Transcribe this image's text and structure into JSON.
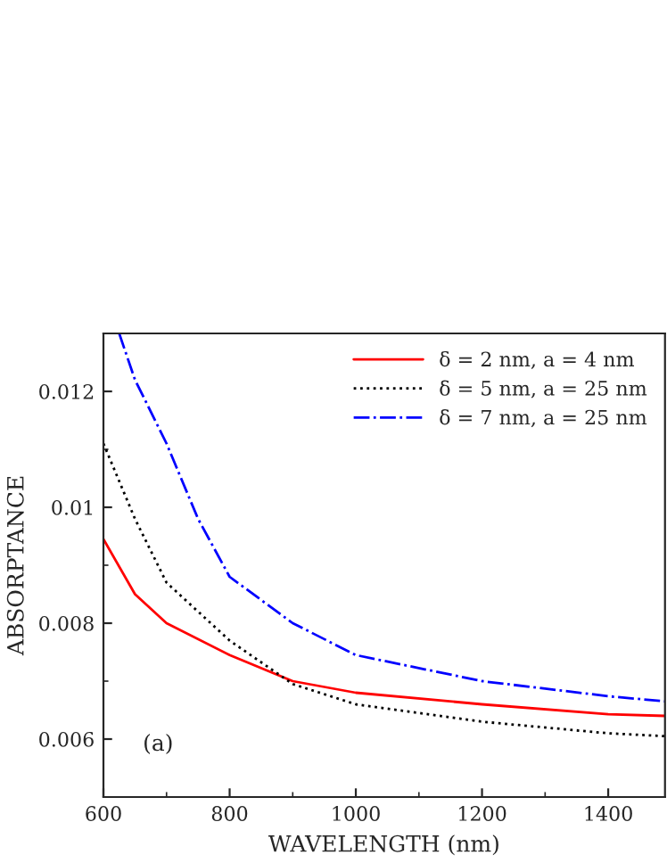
{
  "chart_data": {
    "type": "line",
    "xlabel": "WAVELENGTH (nm)",
    "ylabel": "ABSORPTANCE",
    "annotations": [
      "(a)"
    ],
    "xlim": [
      600,
      1490
    ],
    "xticks": [
      600,
      800,
      1000,
      1200,
      1400
    ],
    "ylim": [
      0.005,
      0.013
    ],
    "yticks": [
      0.006,
      0.008,
      {
        "value": 0.01,
        "label": "0.01"
      },
      0.012
    ],
    "grid": false,
    "legend": "top right",
    "series": [
      {
        "name": "δ = 2 nm, a = 4 nm",
        "color": "#ff0000",
        "line_style": "solid",
        "x": [
          600,
          650,
          700,
          800,
          900,
          1000,
          1200,
          1400,
          1490
        ],
        "values": [
          0.00945,
          0.0085,
          0.008,
          0.00745,
          0.007,
          0.0068,
          0.0066,
          0.00643,
          0.0064
        ]
      },
      {
        "name": "δ = 5 nm, a = 25 nm",
        "color": "#000000",
        "line_style": "dotted",
        "x": [
          600,
          650,
          700,
          800,
          900,
          1000,
          1200,
          1400,
          1490
        ],
        "values": [
          0.0111,
          0.0098,
          0.0087,
          0.0077,
          0.00695,
          0.0066,
          0.0063,
          0.0061,
          0.00605
        ]
      },
      {
        "name": "δ = 7 nm, a = 25 nm",
        "color": "#0000ff",
        "line_style": "dashdot",
        "x": [
          625,
          650,
          700,
          750,
          800,
          900,
          1000,
          1200,
          1400,
          1490
        ],
        "values": [
          0.013,
          0.0122,
          0.0111,
          0.0098,
          0.0088,
          0.008,
          0.00745,
          0.007,
          0.00674,
          0.00665
        ]
      }
    ]
  }
}
